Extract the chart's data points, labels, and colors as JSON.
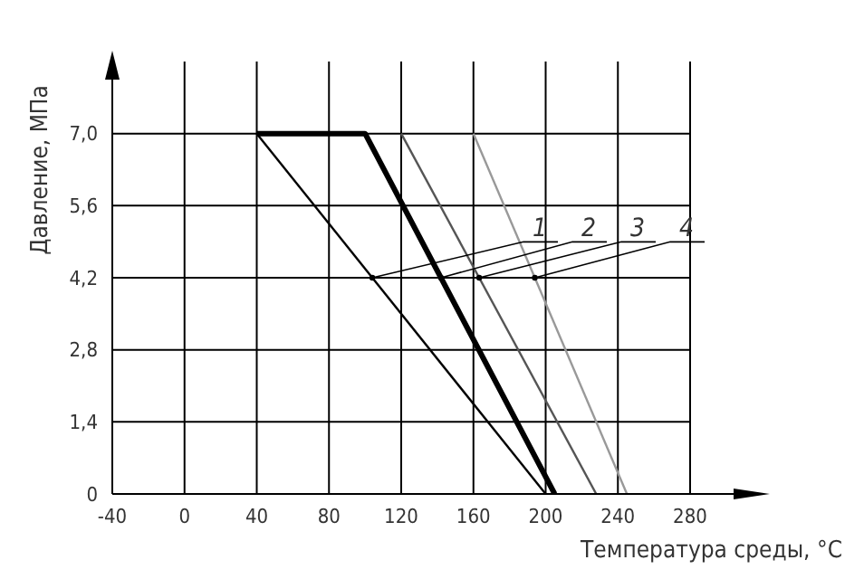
{
  "chart_data": {
    "type": "line",
    "xlabel": "Температура среды, °C",
    "ylabel": "Давление, МПа",
    "series": [
      {
        "name": "1",
        "color": "#000000",
        "x": [
          40,
          200
        ],
        "values": [
          7.0,
          0
        ]
      },
      {
        "name": "2",
        "color": "#000000",
        "x": [
          40,
          100,
          205
        ],
        "values": [
          7.0,
          7.0,
          0
        ]
      },
      {
        "name": "3",
        "color": "#555555",
        "x": [
          120,
          228
        ],
        "values": [
          7.0,
          0
        ]
      },
      {
        "name": "4",
        "color": "#999999",
        "x": [
          160,
          245
        ],
        "values": [
          7.0,
          0
        ]
      }
    ],
    "xlim": [
      -40,
      280
    ],
    "xticks": [
      -40,
      0,
      40,
      80,
      120,
      160,
      200,
      240,
      280
    ],
    "ylim": [
      0,
      8.4
    ],
    "yticks": [
      {
        "value": 0,
        "label": "0"
      },
      {
        "value": 1.4,
        "label": "1,4"
      },
      {
        "value": 2.8,
        "label": "2,8"
      },
      {
        "value": 4.2,
        "label": "4,2"
      },
      {
        "value": 5.6,
        "label": "5,6"
      },
      {
        "value": 7.0,
        "label": "7,0"
      }
    ],
    "grid": true,
    "marker": "none",
    "line_style": "solid"
  }
}
